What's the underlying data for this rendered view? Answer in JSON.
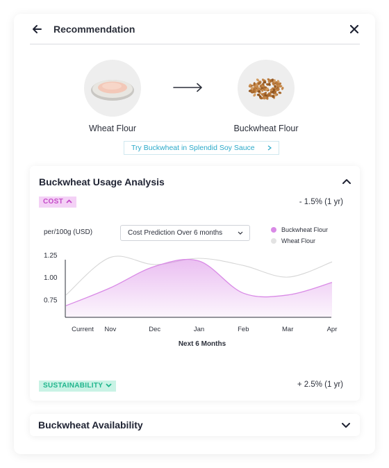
{
  "header": {
    "title": "Recommendation"
  },
  "swap": {
    "from": {
      "name": "Wheat Flour"
    },
    "to": {
      "name": "Buckwheat Flour"
    }
  },
  "try_link": {
    "label": "Try Buckwheat in Splendid Soy Sauce"
  },
  "analysis": {
    "title": "Buckwheat Usage Analysis",
    "cost": {
      "badge": "COST",
      "change": "- 1.5% (1 yr)"
    },
    "sustainability": {
      "badge": "SUSTAINABILITY",
      "change": "+ 2.5% (1 yr)"
    },
    "unit_label": "per/100g (USD)",
    "period_select": {
      "value": "Cost Prediction Over 6 months"
    }
  },
  "availability": {
    "title": "Buckwheat Availability"
  },
  "colors": {
    "buckwheat": "#d98ae6",
    "wheat": "#e3e3e3",
    "cost_badge_bg": "#f4d1f6",
    "sustainability_badge_bg": "#c9f3e5",
    "link": "#2aa9c9"
  },
  "chart_data": {
    "type": "area",
    "xlabel": "Next 6 Months",
    "ylabel": "per/100g (USD)",
    "categories": [
      "Current",
      "Nov",
      "Dec",
      "Jan",
      "Feb",
      "Mar",
      "Apr"
    ],
    "yticks": [
      "1.25",
      "1.00",
      "0.75"
    ],
    "ylim": [
      0.55,
      1.35
    ],
    "legend": [
      "Buckwheat Flour",
      "Wheat Flour"
    ],
    "legend_position": "top-right",
    "series": [
      {
        "name": "Buckwheat Flour",
        "color": "#d98ae6",
        "filled": true,
        "values": [
          0.68,
          0.88,
          1.12,
          1.18,
          0.82,
          0.8,
          0.94
        ]
      },
      {
        "name": "Wheat Flour",
        "color": "#d6d6d6",
        "filled": false,
        "values": [
          0.8,
          1.22,
          1.14,
          1.21,
          1.13,
          1.0,
          1.17
        ]
      }
    ]
  }
}
